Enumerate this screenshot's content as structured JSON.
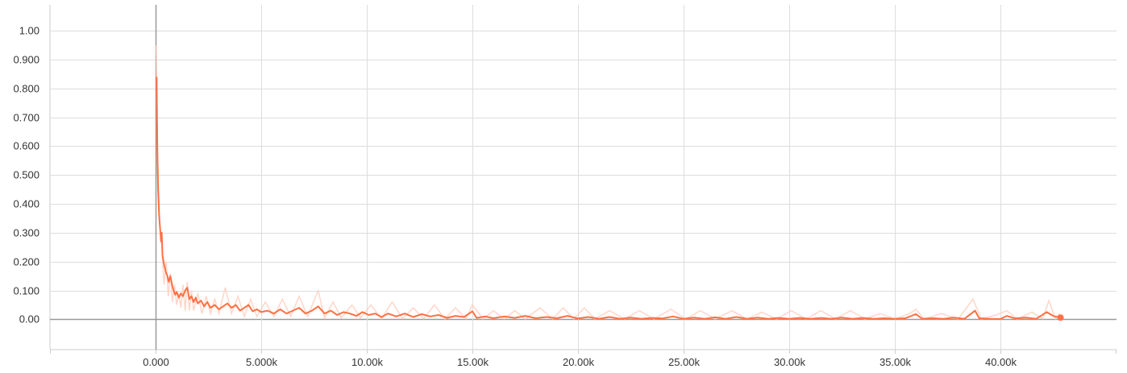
{
  "chart_data": {
    "type": "line",
    "title": "",
    "xlabel": "",
    "ylabel": "",
    "xlim": [
      -5000,
      45500
    ],
    "ylim": [
      -0.105,
      1.09
    ],
    "x_ticks": [
      0,
      5000,
      10000,
      15000,
      20000,
      25000,
      30000,
      35000,
      40000
    ],
    "x_tick_labels": [
      "0.000",
      "5.000k",
      "10.00k",
      "15.00k",
      "20.00k",
      "25.00k",
      "30.00k",
      "35.00k",
      "40.00k"
    ],
    "y_ticks": [
      0,
      0.1,
      0.2,
      0.3,
      0.4,
      0.5,
      0.6,
      0.7,
      0.8,
      0.9,
      1.0
    ],
    "y_tick_labels": [
      "0.00",
      "0.100",
      "0.200",
      "0.300",
      "0.400",
      "0.500",
      "0.600",
      "0.700",
      "0.800",
      "0.900",
      "1.00"
    ],
    "grid": true,
    "legend": "none",
    "series": [
      {
        "color": "#ff7043",
        "raw_color": "#ffccbc",
        "smoothed": [
          [
            50,
            0.84
          ],
          [
            80,
            0.6
          ],
          [
            120,
            0.45
          ],
          [
            170,
            0.36
          ],
          [
            230,
            0.3
          ],
          [
            260,
            0.27
          ],
          [
            290,
            0.3
          ],
          [
            330,
            0.22
          ],
          [
            400,
            0.19
          ],
          [
            480,
            0.165
          ],
          [
            560,
            0.15
          ],
          [
            620,
            0.13
          ],
          [
            700,
            0.15
          ],
          [
            780,
            0.12
          ],
          [
            850,
            0.1
          ],
          [
            930,
            0.085
          ],
          [
            1000,
            0.095
          ],
          [
            1100,
            0.075
          ],
          [
            1200,
            0.09
          ],
          [
            1300,
            0.08
          ],
          [
            1400,
            0.1
          ],
          [
            1500,
            0.11
          ],
          [
            1600,
            0.07
          ],
          [
            1700,
            0.08
          ],
          [
            1800,
            0.06
          ],
          [
            1900,
            0.075
          ],
          [
            2000,
            0.055
          ],
          [
            2150,
            0.065
          ],
          [
            2300,
            0.045
          ],
          [
            2450,
            0.06
          ],
          [
            2600,
            0.04
          ],
          [
            2800,
            0.05
          ],
          [
            3000,
            0.035
          ],
          [
            3200,
            0.045
          ],
          [
            3400,
            0.055
          ],
          [
            3600,
            0.04
          ],
          [
            3800,
            0.05
          ],
          [
            4000,
            0.03
          ],
          [
            4200,
            0.04
          ],
          [
            4400,
            0.05
          ],
          [
            4600,
            0.028
          ],
          [
            4800,
            0.035
          ],
          [
            5000,
            0.025
          ],
          [
            5300,
            0.03
          ],
          [
            5600,
            0.02
          ],
          [
            5900,
            0.035
          ],
          [
            6200,
            0.02
          ],
          [
            6500,
            0.03
          ],
          [
            6800,
            0.04
          ],
          [
            7100,
            0.02
          ],
          [
            7400,
            0.03
          ],
          [
            7700,
            0.045
          ],
          [
            8000,
            0.02
          ],
          [
            8300,
            0.03
          ],
          [
            8600,
            0.015
          ],
          [
            8900,
            0.025
          ],
          [
            9200,
            0.02
          ],
          [
            9500,
            0.012
          ],
          [
            9800,
            0.025
          ],
          [
            10100,
            0.015
          ],
          [
            10400,
            0.02
          ],
          [
            10700,
            0.008
          ],
          [
            11000,
            0.02
          ],
          [
            11400,
            0.01
          ],
          [
            11800,
            0.02
          ],
          [
            12200,
            0.008
          ],
          [
            12600,
            0.018
          ],
          [
            13000,
            0.01
          ],
          [
            13400,
            0.015
          ],
          [
            13800,
            0.005
          ],
          [
            14200,
            0.012
          ],
          [
            14600,
            0.008
          ],
          [
            15000,
            0.028
          ],
          [
            15200,
            0.005
          ],
          [
            15600,
            0.01
          ],
          [
            16000,
            0.004
          ],
          [
            16500,
            0.01
          ],
          [
            17000,
            0.005
          ],
          [
            17500,
            0.012
          ],
          [
            18000,
            0.004
          ],
          [
            18500,
            0.008
          ],
          [
            19000,
            0.004
          ],
          [
            19500,
            0.012
          ],
          [
            20000,
            0.003
          ],
          [
            20500,
            0.008
          ],
          [
            21000,
            0.002
          ],
          [
            21500,
            0.008
          ],
          [
            22000,
            0.002
          ],
          [
            22500,
            0.006
          ],
          [
            23000,
            0.002
          ],
          [
            23500,
            0.005
          ],
          [
            24000,
            0.003
          ],
          [
            24500,
            0.01
          ],
          [
            25000,
            0.002
          ],
          [
            25500,
            0.006
          ],
          [
            26000,
            0.002
          ],
          [
            26500,
            0.007
          ],
          [
            27000,
            0.002
          ],
          [
            27500,
            0.008
          ],
          [
            28000,
            0.002
          ],
          [
            28500,
            0.006
          ],
          [
            29000,
            0.002
          ],
          [
            29500,
            0.005
          ],
          [
            30000,
            0.002
          ],
          [
            30500,
            0.005
          ],
          [
            31000,
            0.002
          ],
          [
            31500,
            0.005
          ],
          [
            32000,
            0.002
          ],
          [
            32500,
            0.006
          ],
          [
            33000,
            0.002
          ],
          [
            33500,
            0.005
          ],
          [
            34000,
            0.002
          ],
          [
            34500,
            0.004
          ],
          [
            35000,
            0.002
          ],
          [
            35500,
            0.004
          ],
          [
            36000,
            0.018
          ],
          [
            36300,
            0.002
          ],
          [
            36800,
            0.004
          ],
          [
            37300,
            0.002
          ],
          [
            37800,
            0.006
          ],
          [
            38300,
            0.002
          ],
          [
            38800,
            0.03
          ],
          [
            39000,
            0.004
          ],
          [
            39500,
            0.002
          ],
          [
            40000,
            0.001
          ],
          [
            40300,
            0.012
          ],
          [
            40700,
            0.003
          ],
          [
            41200,
            0.006
          ],
          [
            41700,
            0.002
          ],
          [
            42200,
            0.025
          ],
          [
            42500,
            0.012
          ],
          [
            42800,
            0.006
          ]
        ],
        "raw": [
          [
            30,
            0.95
          ],
          [
            100,
            0.55
          ],
          [
            200,
            0.32
          ],
          [
            300,
            0.25
          ],
          [
            400,
            0.12
          ],
          [
            500,
            0.2
          ],
          [
            600,
            0.08
          ],
          [
            700,
            0.16
          ],
          [
            800,
            0.06
          ],
          [
            900,
            0.12
          ],
          [
            1000,
            0.05
          ],
          [
            1100,
            0.09
          ],
          [
            1200,
            0.04
          ],
          [
            1300,
            0.12
          ],
          [
            1400,
            0.03
          ],
          [
            1500,
            0.13
          ],
          [
            1600,
            0.03
          ],
          [
            1700,
            0.1
          ],
          [
            1800,
            0.03
          ],
          [
            2000,
            0.09
          ],
          [
            2200,
            0.02
          ],
          [
            2400,
            0.08
          ],
          [
            2600,
            0.02
          ],
          [
            2800,
            0.07
          ],
          [
            3000,
            0.02
          ],
          [
            3300,
            0.11
          ],
          [
            3600,
            0.02
          ],
          [
            3900,
            0.08
          ],
          [
            4200,
            0.01
          ],
          [
            4500,
            0.07
          ],
          [
            4800,
            0.01
          ],
          [
            5200,
            0.06
          ],
          [
            5600,
            0.01
          ],
          [
            6000,
            0.07
          ],
          [
            6400,
            0.01
          ],
          [
            6800,
            0.08
          ],
          [
            7200,
            0.01
          ],
          [
            7700,
            0.1
          ],
          [
            8000,
            0.005
          ],
          [
            8400,
            0.06
          ],
          [
            8800,
            0.005
          ],
          [
            9300,
            0.05
          ],
          [
            9700,
            0.005
          ],
          [
            10200,
            0.05
          ],
          [
            10700,
            0.002
          ],
          [
            11200,
            0.06
          ],
          [
            11700,
            0.002
          ],
          [
            12200,
            0.04
          ],
          [
            12700,
            0.002
          ],
          [
            13200,
            0.05
          ],
          [
            13700,
            0.001
          ],
          [
            14200,
            0.04
          ],
          [
            14700,
            0.002
          ],
          [
            15000,
            0.05
          ],
          [
            15500,
            0.001
          ],
          [
            16000,
            0.03
          ],
          [
            16500,
            0.001
          ],
          [
            17000,
            0.03
          ],
          [
            17500,
            0.001
          ],
          [
            18200,
            0.04
          ],
          [
            18800,
            0.001
          ],
          [
            19300,
            0.04
          ],
          [
            19800,
            0.001
          ],
          [
            20300,
            0.04
          ],
          [
            20800,
            0.001
          ],
          [
            21500,
            0.03
          ],
          [
            22200,
            0.001
          ],
          [
            22900,
            0.03
          ],
          [
            23600,
            0.001
          ],
          [
            24400,
            0.035
          ],
          [
            25100,
            0.001
          ],
          [
            25800,
            0.03
          ],
          [
            26500,
            0.001
          ],
          [
            27300,
            0.03
          ],
          [
            28000,
            0.001
          ],
          [
            28700,
            0.025
          ],
          [
            29400,
            0.001
          ],
          [
            30100,
            0.03
          ],
          [
            30800,
            0.001
          ],
          [
            31500,
            0.03
          ],
          [
            32200,
            0.001
          ],
          [
            32900,
            0.03
          ],
          [
            33600,
            0.001
          ],
          [
            34300,
            0.02
          ],
          [
            35000,
            0.001
          ],
          [
            35700,
            0.02
          ],
          [
            36000,
            0.035
          ],
          [
            36400,
            0.001
          ],
          [
            37200,
            0.02
          ],
          [
            38000,
            0.001
          ],
          [
            38700,
            0.07
          ],
          [
            39100,
            0.001
          ],
          [
            39800,
            0.015
          ],
          [
            40300,
            0.03
          ],
          [
            40800,
            0.001
          ],
          [
            41500,
            0.025
          ],
          [
            42000,
            0.002
          ],
          [
            42300,
            0.065
          ],
          [
            42600,
            0.002
          ],
          [
            42800,
            0.02
          ]
        ],
        "last_point": [
          42850,
          0.006
        ]
      }
    ]
  }
}
